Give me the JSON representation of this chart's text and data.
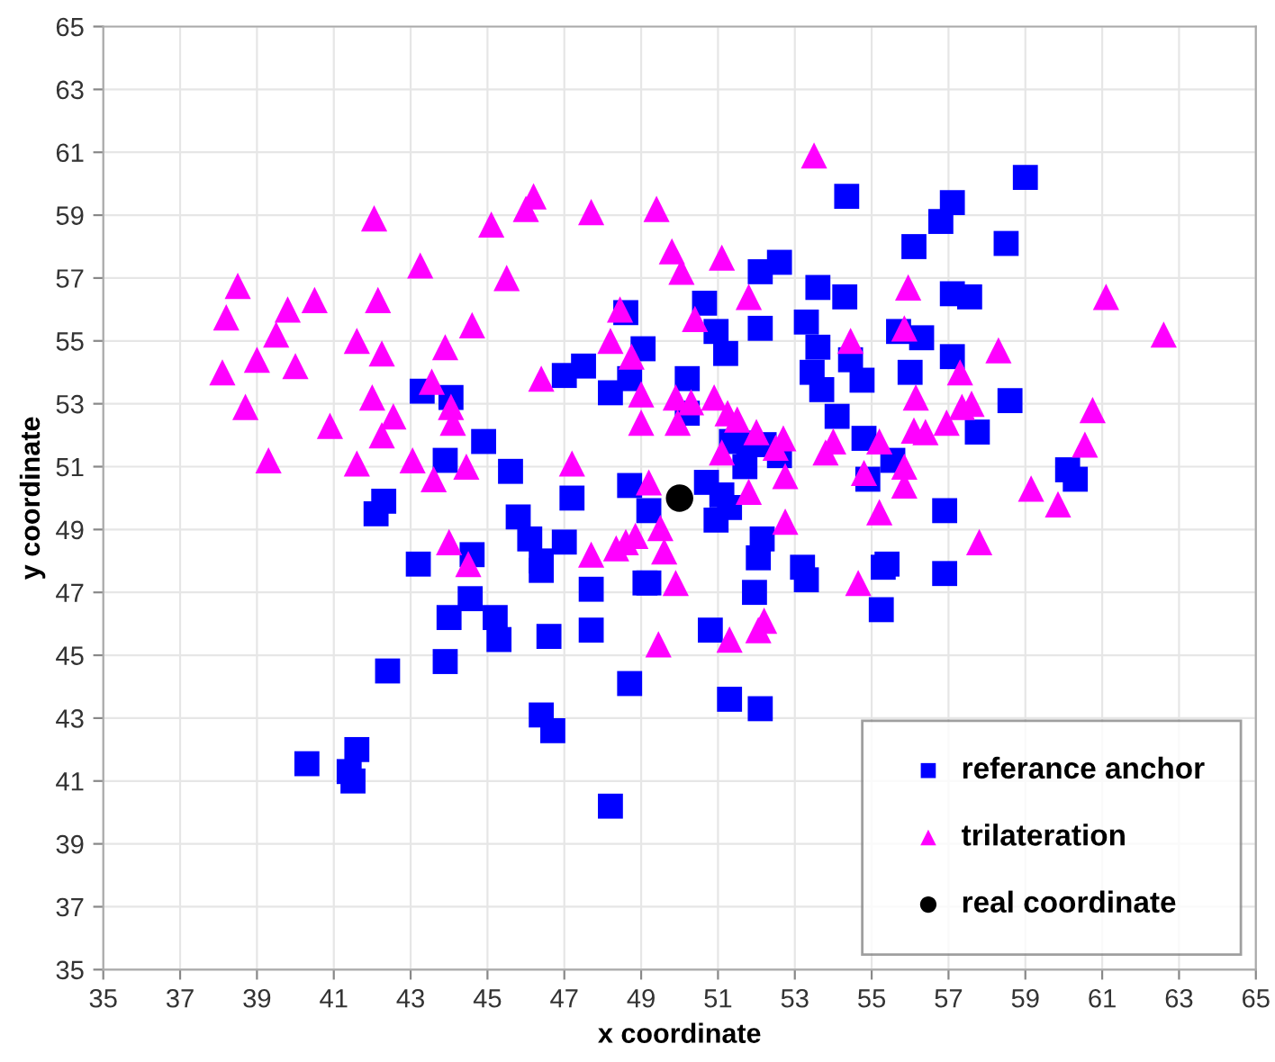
{
  "chart_data": {
    "type": "scatter",
    "xlabel": "x coordinate",
    "ylabel": "y coordinate",
    "xlim": [
      35,
      65
    ],
    "ylim": [
      35,
      65
    ],
    "xticks": [
      35,
      37,
      39,
      41,
      43,
      45,
      47,
      49,
      51,
      53,
      55,
      57,
      59,
      61,
      63,
      65
    ],
    "yticks": [
      35,
      37,
      39,
      41,
      43,
      45,
      47,
      49,
      51,
      53,
      55,
      57,
      59,
      61,
      63,
      65
    ],
    "grid": true,
    "legend": "bottom right",
    "series": [
      {
        "name": "referance anchor",
        "color": "#0000ff",
        "marker": "square",
        "x": [
          42.1,
          42.3,
          43.2,
          44.6,
          44.55,
          44.0,
          45.2,
          45.3,
          43.9,
          42.4,
          45.8,
          46.1,
          46.4,
          46.4,
          47.0,
          46.6,
          47.7,
          47.7,
          46.4,
          46.7,
          48.7,
          48.2,
          40.3,
          41.6,
          41.4,
          41.5,
          49.1,
          49.2,
          50.95,
          51.3,
          52.15,
          52.05,
          49.2,
          51.95,
          53.2,
          53.3,
          55.3,
          55.4,
          55.25,
          56.9,
          56.9,
          50.8,
          51.3,
          52.1,
          43.3,
          44.05,
          43.9,
          44.9,
          45.6,
          47.2,
          47.0,
          47.5,
          48.2,
          48.7,
          48.6,
          49.05,
          48.7,
          50.2,
          54.35,
          57.1,
          56.8,
          59.0,
          56.1,
          58.5,
          52.1,
          52.6,
          50.65,
          50.95,
          51.2,
          52.1,
          53.6,
          54.3,
          53.3,
          53.6,
          53.45,
          53.7,
          54.45,
          54.75,
          55.7,
          56.3,
          56.0,
          57.1,
          57.55,
          57.1,
          58.6,
          57.75,
          54.1,
          54.8,
          55.55,
          51.35,
          51.8,
          52.2,
          52.6,
          51.7,
          50.7,
          51.1,
          50.2,
          54.9,
          60.1,
          60.3
        ],
        "values": [
          49.5,
          49.9,
          47.9,
          48.2,
          46.8,
          46.2,
          46.2,
          45.5,
          44.8,
          44.5,
          49.4,
          48.7,
          48.0,
          47.7,
          48.6,
          45.6,
          47.1,
          45.8,
          43.1,
          42.6,
          44.1,
          40.2,
          41.55,
          42.0,
          41.3,
          41.0,
          47.3,
          49.6,
          49.3,
          49.7,
          48.7,
          48.1,
          47.3,
          47.0,
          47.8,
          47.4,
          47.8,
          47.9,
          46.45,
          47.6,
          49.6,
          45.8,
          43.6,
          43.3,
          53.4,
          53.2,
          51.2,
          51.8,
          50.85,
          50.0,
          53.9,
          54.2,
          53.35,
          53.8,
          55.9,
          54.75,
          50.4,
          53.8,
          59.6,
          59.4,
          58.8,
          60.2,
          58.0,
          58.1,
          57.2,
          57.5,
          56.2,
          55.3,
          54.6,
          55.4,
          56.7,
          56.4,
          55.6,
          54.8,
          54.0,
          53.45,
          54.4,
          53.75,
          55.3,
          55.1,
          54.0,
          56.5,
          56.4,
          54.5,
          53.1,
          52.1,
          52.6,
          51.9,
          51.2,
          51.8,
          51.75,
          51.7,
          51.35,
          51.0,
          50.5,
          50.1,
          52.7,
          50.6,
          50.9,
          50.6
        ]
      },
      {
        "name": "trilateration",
        "color": "#ff00ff",
        "marker": "triangle",
        "x": [
          38.1,
          38.2,
          38.5,
          38.7,
          39.0,
          39.3,
          39.5,
          39.8,
          40.0,
          40.5,
          40.9,
          41.6,
          41.6,
          42.05,
          42.15,
          42.25,
          42.0,
          42.25,
          42.55,
          43.05,
          43.25,
          43.6,
          43.55,
          43.9,
          44.05,
          44.1,
          44.45,
          44.6,
          45.1,
          45.5,
          46.0,
          46.2,
          46.4,
          47.7,
          47.2,
          48.2,
          48.75,
          49.0,
          49.0,
          44.0,
          44.5,
          47.7,
          48.35,
          48.6,
          48.85,
          49.4,
          49.8,
          50.05,
          51.1,
          51.8,
          48.45,
          50.4,
          53.5,
          55.95,
          55.85,
          54.45,
          58.3,
          57.3,
          56.15,
          57.35,
          57.6,
          56.95,
          56.1,
          56.4,
          60.75,
          60.55,
          61.1,
          62.6,
          59.15,
          59.85,
          49.9,
          50.3,
          50.9,
          49.95,
          51.25,
          51.5,
          51.1,
          52.0,
          52.7,
          52.5,
          53.8,
          54.0,
          55.2,
          52.75,
          51.8,
          49.2,
          54.8,
          55.85,
          55.85,
          55.2,
          52.75,
          57.8,
          49.5,
          49.6,
          49.9,
          54.65,
          49.45,
          51.3,
          52.05,
          52.2
        ],
        "values": [
          54.0,
          55.75,
          56.75,
          52.9,
          54.4,
          51.2,
          55.2,
          56.0,
          54.2,
          56.3,
          52.3,
          55.0,
          51.1,
          58.9,
          56.3,
          54.6,
          53.2,
          52.0,
          52.6,
          51.2,
          57.4,
          50.6,
          53.7,
          54.8,
          52.9,
          52.4,
          51.0,
          55.5,
          58.7,
          57.0,
          59.2,
          59.6,
          53.8,
          59.1,
          51.1,
          55.0,
          54.5,
          53.3,
          52.4,
          48.6,
          47.9,
          48.2,
          48.4,
          48.6,
          48.8,
          59.2,
          57.85,
          57.2,
          57.65,
          56.4,
          56.0,
          55.7,
          60.9,
          56.7,
          55.4,
          55.0,
          54.7,
          54.0,
          53.2,
          52.9,
          53.0,
          52.4,
          52.15,
          52.1,
          52.8,
          51.7,
          56.4,
          55.2,
          50.3,
          49.8,
          53.2,
          53.05,
          53.2,
          52.4,
          52.7,
          52.5,
          51.45,
          52.1,
          51.9,
          51.6,
          51.45,
          51.8,
          51.8,
          50.7,
          50.2,
          50.5,
          50.8,
          51.0,
          50.4,
          49.55,
          49.25,
          48.6,
          49.05,
          48.3,
          47.3,
          47.3,
          45.35,
          45.5,
          45.8,
          46.1
        ]
      },
      {
        "name": "real coordinate",
        "color": "#000000",
        "marker": "circle",
        "x": [
          50
        ],
        "values": [
          50
        ]
      }
    ]
  }
}
